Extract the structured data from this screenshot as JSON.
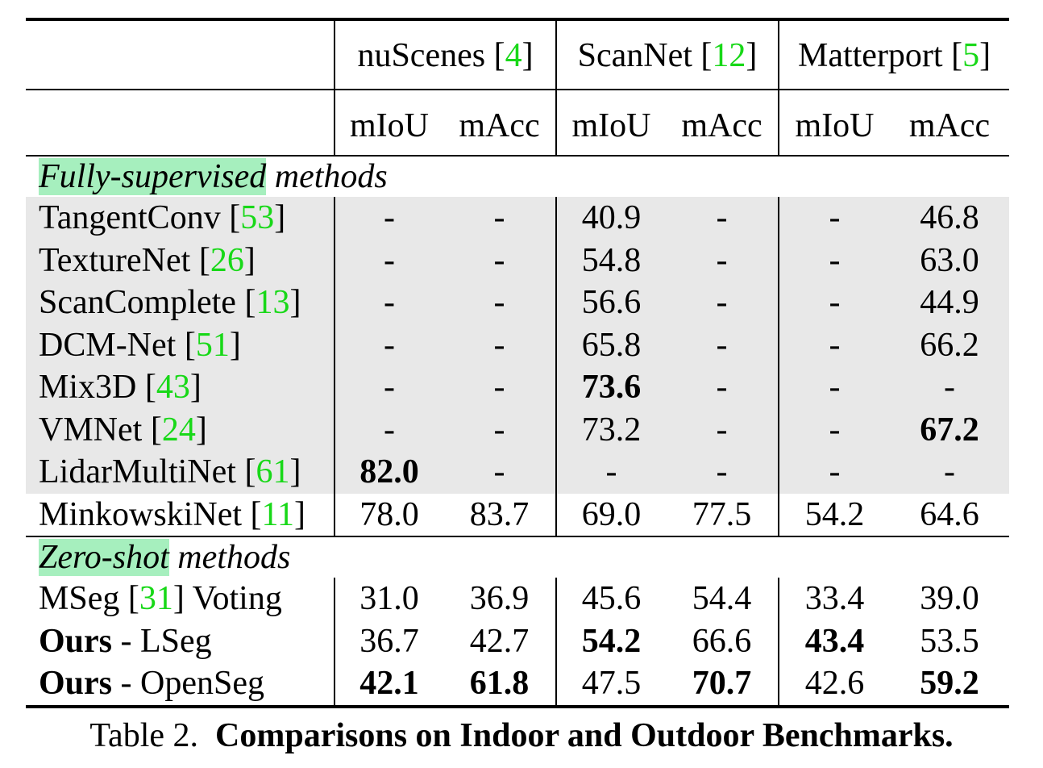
{
  "header": {
    "datasets": [
      {
        "name": "nuScenes",
        "cite": "4"
      },
      {
        "name": "ScanNet",
        "cite": "12"
      },
      {
        "name": "Matterport",
        "cite": "5"
      }
    ],
    "metrics": [
      "mIoU",
      "mAcc",
      "mIoU",
      "mAcc",
      "mIoU",
      "mAcc"
    ]
  },
  "sections": [
    {
      "highlight": "Fully-supervised",
      "rest": " methods",
      "rows": [
        {
          "name": "TangentConv",
          "cite": "53",
          "suffix": "",
          "bold_name": "",
          "gray": true,
          "values": [
            "-",
            "-",
            "40.9",
            "-",
            "-",
            "46.8"
          ],
          "bold": [
            false,
            false,
            false,
            false,
            false,
            false
          ]
        },
        {
          "name": "TextureNet",
          "cite": "26",
          "suffix": "",
          "bold_name": "",
          "gray": true,
          "values": [
            "-",
            "-",
            "54.8",
            "-",
            "-",
            "63.0"
          ],
          "bold": [
            false,
            false,
            false,
            false,
            false,
            false
          ]
        },
        {
          "name": "ScanComplete",
          "cite": "13",
          "suffix": "",
          "bold_name": "",
          "gray": true,
          "values": [
            "-",
            "-",
            "56.6",
            "-",
            "-",
            "44.9"
          ],
          "bold": [
            false,
            false,
            false,
            false,
            false,
            false
          ]
        },
        {
          "name": "DCM-Net",
          "cite": "51",
          "suffix": "",
          "bold_name": "",
          "gray": true,
          "values": [
            "-",
            "-",
            "65.8",
            "-",
            "-",
            "66.2"
          ],
          "bold": [
            false,
            false,
            false,
            false,
            false,
            false
          ]
        },
        {
          "name": "Mix3D",
          "cite": "43",
          "suffix": "",
          "bold_name": "",
          "gray": true,
          "values": [
            "-",
            "-",
            "73.6",
            "-",
            "-",
            "-"
          ],
          "bold": [
            false,
            false,
            true,
            false,
            false,
            false
          ]
        },
        {
          "name": "VMNet",
          "cite": "24",
          "suffix": "",
          "bold_name": "",
          "gray": true,
          "values": [
            "-",
            "-",
            "73.2",
            "-",
            "-",
            "67.2"
          ],
          "bold": [
            false,
            false,
            false,
            false,
            false,
            true
          ]
        },
        {
          "name": "LidarMultiNet",
          "cite": "61",
          "suffix": "",
          "bold_name": "",
          "gray": true,
          "values": [
            "82.0",
            "-",
            "-",
            "-",
            "-",
            "-"
          ],
          "bold": [
            true,
            false,
            false,
            false,
            false,
            false
          ]
        },
        {
          "name": "MinkowskiNet",
          "cite": "11",
          "suffix": "",
          "bold_name": "",
          "gray": false,
          "values": [
            "78.0",
            "83.7",
            "69.0",
            "77.5",
            "54.2",
            "64.6"
          ],
          "bold": [
            false,
            false,
            false,
            false,
            false,
            false
          ]
        }
      ]
    },
    {
      "highlight": "Zero-shot",
      "rest": " methods",
      "rows": [
        {
          "name": "MSeg",
          "cite": "31",
          "suffix": " Voting",
          "bold_name": "",
          "gray": false,
          "values": [
            "31.0",
            "36.9",
            "45.6",
            "54.4",
            "33.4",
            "39.0"
          ],
          "bold": [
            false,
            false,
            false,
            false,
            false,
            false
          ]
        },
        {
          "name": " - LSeg",
          "cite": "",
          "suffix": "",
          "bold_name": "Ours",
          "gray": false,
          "values": [
            "36.7",
            "42.7",
            "54.2",
            "66.6",
            "43.4",
            "53.5"
          ],
          "bold": [
            false,
            false,
            true,
            false,
            true,
            false
          ]
        },
        {
          "name": " - OpenSeg",
          "cite": "",
          "suffix": "",
          "bold_name": "Ours",
          "gray": false,
          "values": [
            "42.1",
            "61.8",
            "47.5",
            "70.7",
            "42.6",
            "59.2"
          ],
          "bold": [
            true,
            true,
            false,
            true,
            false,
            true
          ]
        }
      ]
    }
  ],
  "caption": {
    "label": "Table 2.",
    "title": "Comparisons on Indoor and Outdoor Benchmarks."
  },
  "colors": {
    "cite": "#18d818",
    "highlight": "#a6efbe",
    "gray_row": "#e8e8e8"
  }
}
